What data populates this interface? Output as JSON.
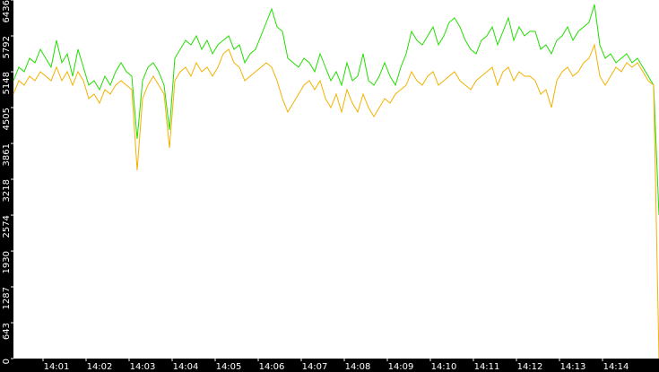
{
  "chart_data": {
    "type": "line",
    "x": [
      0,
      1,
      2,
      3,
      4,
      5,
      6,
      7,
      8,
      9,
      10,
      11,
      12,
      13,
      14,
      15,
      16,
      17,
      18,
      19,
      20,
      21,
      22,
      23,
      24,
      25,
      26,
      27,
      28,
      29,
      30,
      31,
      32,
      33,
      34,
      35,
      36,
      37,
      38,
      39,
      40,
      41,
      42,
      43,
      44,
      45,
      46,
      47,
      48,
      49,
      50,
      51,
      52,
      53,
      54,
      55,
      56,
      57,
      58,
      59,
      60,
      61,
      62,
      63,
      64,
      65,
      66,
      67,
      68,
      69,
      70,
      71,
      72,
      73,
      74,
      75,
      76,
      77,
      78,
      79,
      80,
      81,
      82,
      83,
      84,
      85,
      86,
      87,
      88,
      89,
      90,
      91,
      92,
      93,
      94,
      95,
      96,
      97,
      98,
      99,
      100,
      101,
      102,
      103,
      104,
      105,
      106,
      107,
      108,
      109,
      110,
      111,
      112,
      113,
      114,
      115,
      116,
      117,
      118,
      119,
      120
    ],
    "series": [
      {
        "color": "#22dd00",
        "values": [
          4988,
          5229,
          5149,
          5390,
          5310,
          5551,
          5390,
          5229,
          5712,
          5310,
          5471,
          5068,
          5551,
          5229,
          4907,
          4988,
          4827,
          5068,
          4907,
          5149,
          5310,
          5149,
          5068,
          3942,
          4988,
          5229,
          5310,
          5149,
          4907,
          4103,
          5390,
          5551,
          5712,
          5632,
          5792,
          5551,
          5712,
          5471,
          5632,
          5712,
          5792,
          5551,
          5632,
          5310,
          5471,
          5551,
          5792,
          6034,
          6275,
          5953,
          5873,
          5390,
          5310,
          5229,
          5390,
          5310,
          5149,
          5471,
          5229,
          4988,
          5149,
          4907,
          5310,
          4988,
          5068,
          5471,
          4988,
          4907,
          5068,
          5310,
          5068,
          4907,
          5229,
          5471,
          5873,
          5712,
          5632,
          5792,
          5953,
          5632,
          5792,
          6034,
          6114,
          5953,
          5712,
          5551,
          5471,
          5712,
          5792,
          5953,
          5632,
          5873,
          6114,
          5712,
          5953,
          5792,
          5873,
          5873,
          5551,
          5632,
          5471,
          5712,
          5792,
          5953,
          5712,
          5873,
          5953,
          6034,
          6356,
          5632,
          5390,
          5471,
          5310,
          5390,
          5471,
          5310,
          5390,
          5229,
          5068,
          4907,
          2574
        ]
      },
      {
        "color": "#f2b200",
        "values": [
          4747,
          4988,
          4907,
          5068,
          4988,
          5149,
          5068,
          4988,
          5229,
          4988,
          5149,
          4907,
          5149,
          4988,
          4666,
          4747,
          4586,
          4827,
          4747,
          4907,
          4988,
          4907,
          4827,
          3379,
          4666,
          4907,
          5068,
          4907,
          4747,
          3781,
          4988,
          5149,
          5229,
          5068,
          5310,
          5149,
          5229,
          5068,
          5229,
          5471,
          5551,
          5310,
          5229,
          4988,
          5068,
          5149,
          5229,
          5310,
          5229,
          4988,
          4666,
          4425,
          4586,
          4747,
          4907,
          4988,
          4827,
          4988,
          4666,
          4505,
          4747,
          4425,
          4827,
          4586,
          4425,
          4747,
          4505,
          4344,
          4505,
          4666,
          4586,
          4747,
          4827,
          4907,
          5149,
          4988,
          4907,
          5068,
          5149,
          4907,
          4988,
          5068,
          5149,
          4988,
          4907,
          4827,
          4988,
          5068,
          5149,
          5229,
          4907,
          5149,
          5229,
          4988,
          5149,
          5068,
          5068,
          4988,
          4747,
          4827,
          4505,
          4988,
          5149,
          5229,
          5068,
          5149,
          5310,
          5390,
          5632,
          5068,
          4907,
          5068,
          5229,
          5149,
          5310,
          5229,
          5310,
          5149,
          4988,
          4907,
          0
        ]
      }
    ],
    "xlim": [
      0,
      120
    ],
    "xticks": [
      {
        "value": 8,
        "label": "14:01"
      },
      {
        "value": 16,
        "label": "14:02"
      },
      {
        "value": 24,
        "label": "14:03"
      },
      {
        "value": 32,
        "label": "14:04"
      },
      {
        "value": 40,
        "label": "14:05"
      },
      {
        "value": 48,
        "label": "14:06"
      },
      {
        "value": 56,
        "label": "14:07"
      },
      {
        "value": 64,
        "label": "14:08"
      },
      {
        "value": 72,
        "label": "14:09"
      },
      {
        "value": 80,
        "label": "14:10"
      },
      {
        "value": 88,
        "label": "14:11"
      },
      {
        "value": 96,
        "label": "14:12"
      },
      {
        "value": 104,
        "label": "14:13"
      },
      {
        "value": 112,
        "label": "14:14"
      }
    ],
    "ylim": [
      0,
      6436
    ],
    "yticks": [
      0,
      643,
      1287,
      1930,
      2574,
      3218,
      3861,
      4505,
      5148,
      5792,
      6436
    ]
  }
}
